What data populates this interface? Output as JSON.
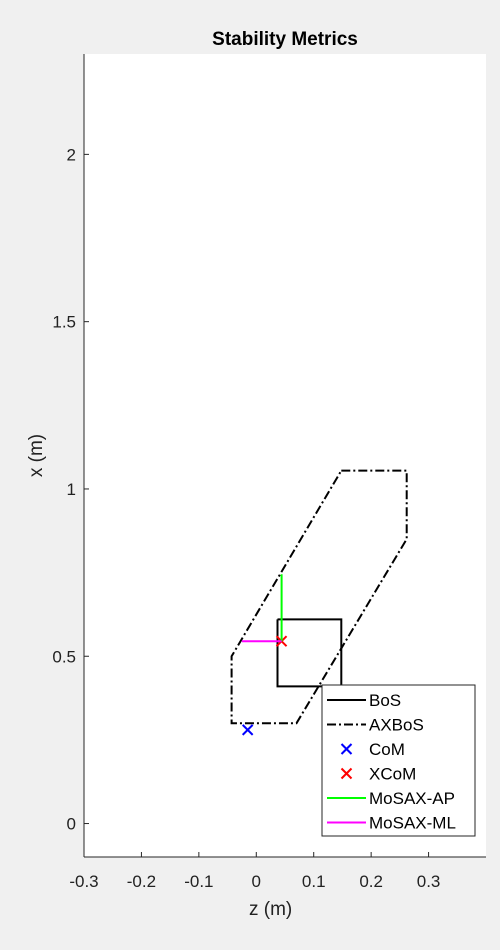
{
  "chart_data": {
    "type": "line",
    "title": "Stability Metrics",
    "xlabel": "z (m)",
    "ylabel": "x (m)",
    "xlim": [
      -0.3,
      0.4
    ],
    "ylim": [
      -0.1,
      2.3
    ],
    "xticks": [
      -0.3,
      -0.2,
      -0.1,
      0,
      0.1,
      0.2,
      0.3
    ],
    "xtick_labels": [
      "-0.3",
      "-0.2",
      "-0.1",
      "0",
      "0.1",
      "0.2",
      "0.3"
    ],
    "yticks": [
      0,
      0.5,
      1,
      1.5,
      2
    ],
    "ytick_labels": [
      "0",
      "0.5",
      "1",
      "1.5",
      "2"
    ],
    "grid": false,
    "legend_position": "bottom-right",
    "series": [
      {
        "name": "BoS",
        "kind": "line",
        "style": "solid",
        "color": "#000000",
        "points": [
          [
            0.037,
            0.61
          ],
          [
            0.148,
            0.61
          ],
          [
            0.148,
            0.41
          ],
          [
            0.037,
            0.41
          ],
          [
            0.037,
            0.61
          ]
        ]
      },
      {
        "name": "AXBoS",
        "kind": "line",
        "style": "dashdot",
        "color": "#000000",
        "points": [
          [
            0.148,
            1.055
          ],
          [
            0.262,
            1.055
          ],
          [
            0.262,
            0.85
          ],
          [
            0.07,
            0.3
          ],
          [
            -0.043,
            0.3
          ],
          [
            -0.043,
            0.5
          ],
          [
            0.148,
            1.055
          ]
        ]
      },
      {
        "name": "CoM",
        "kind": "marker",
        "marker": "x",
        "color": "#0000ff",
        "points": [
          [
            -0.015,
            0.28
          ]
        ]
      },
      {
        "name": "XCoM",
        "kind": "marker",
        "marker": "x",
        "color": "#ff0000",
        "points": [
          [
            0.044,
            0.545
          ]
        ]
      },
      {
        "name": "MoSAX-AP",
        "kind": "line",
        "style": "solid",
        "color": "#00ff00",
        "points": [
          [
            0.044,
            0.545
          ],
          [
            0.044,
            0.745
          ]
        ]
      },
      {
        "name": "MoSAX-ML",
        "kind": "line",
        "style": "solid",
        "color": "#ff00ff",
        "points": [
          [
            -0.025,
            0.545
          ],
          [
            0.044,
            0.545
          ]
        ]
      }
    ]
  }
}
